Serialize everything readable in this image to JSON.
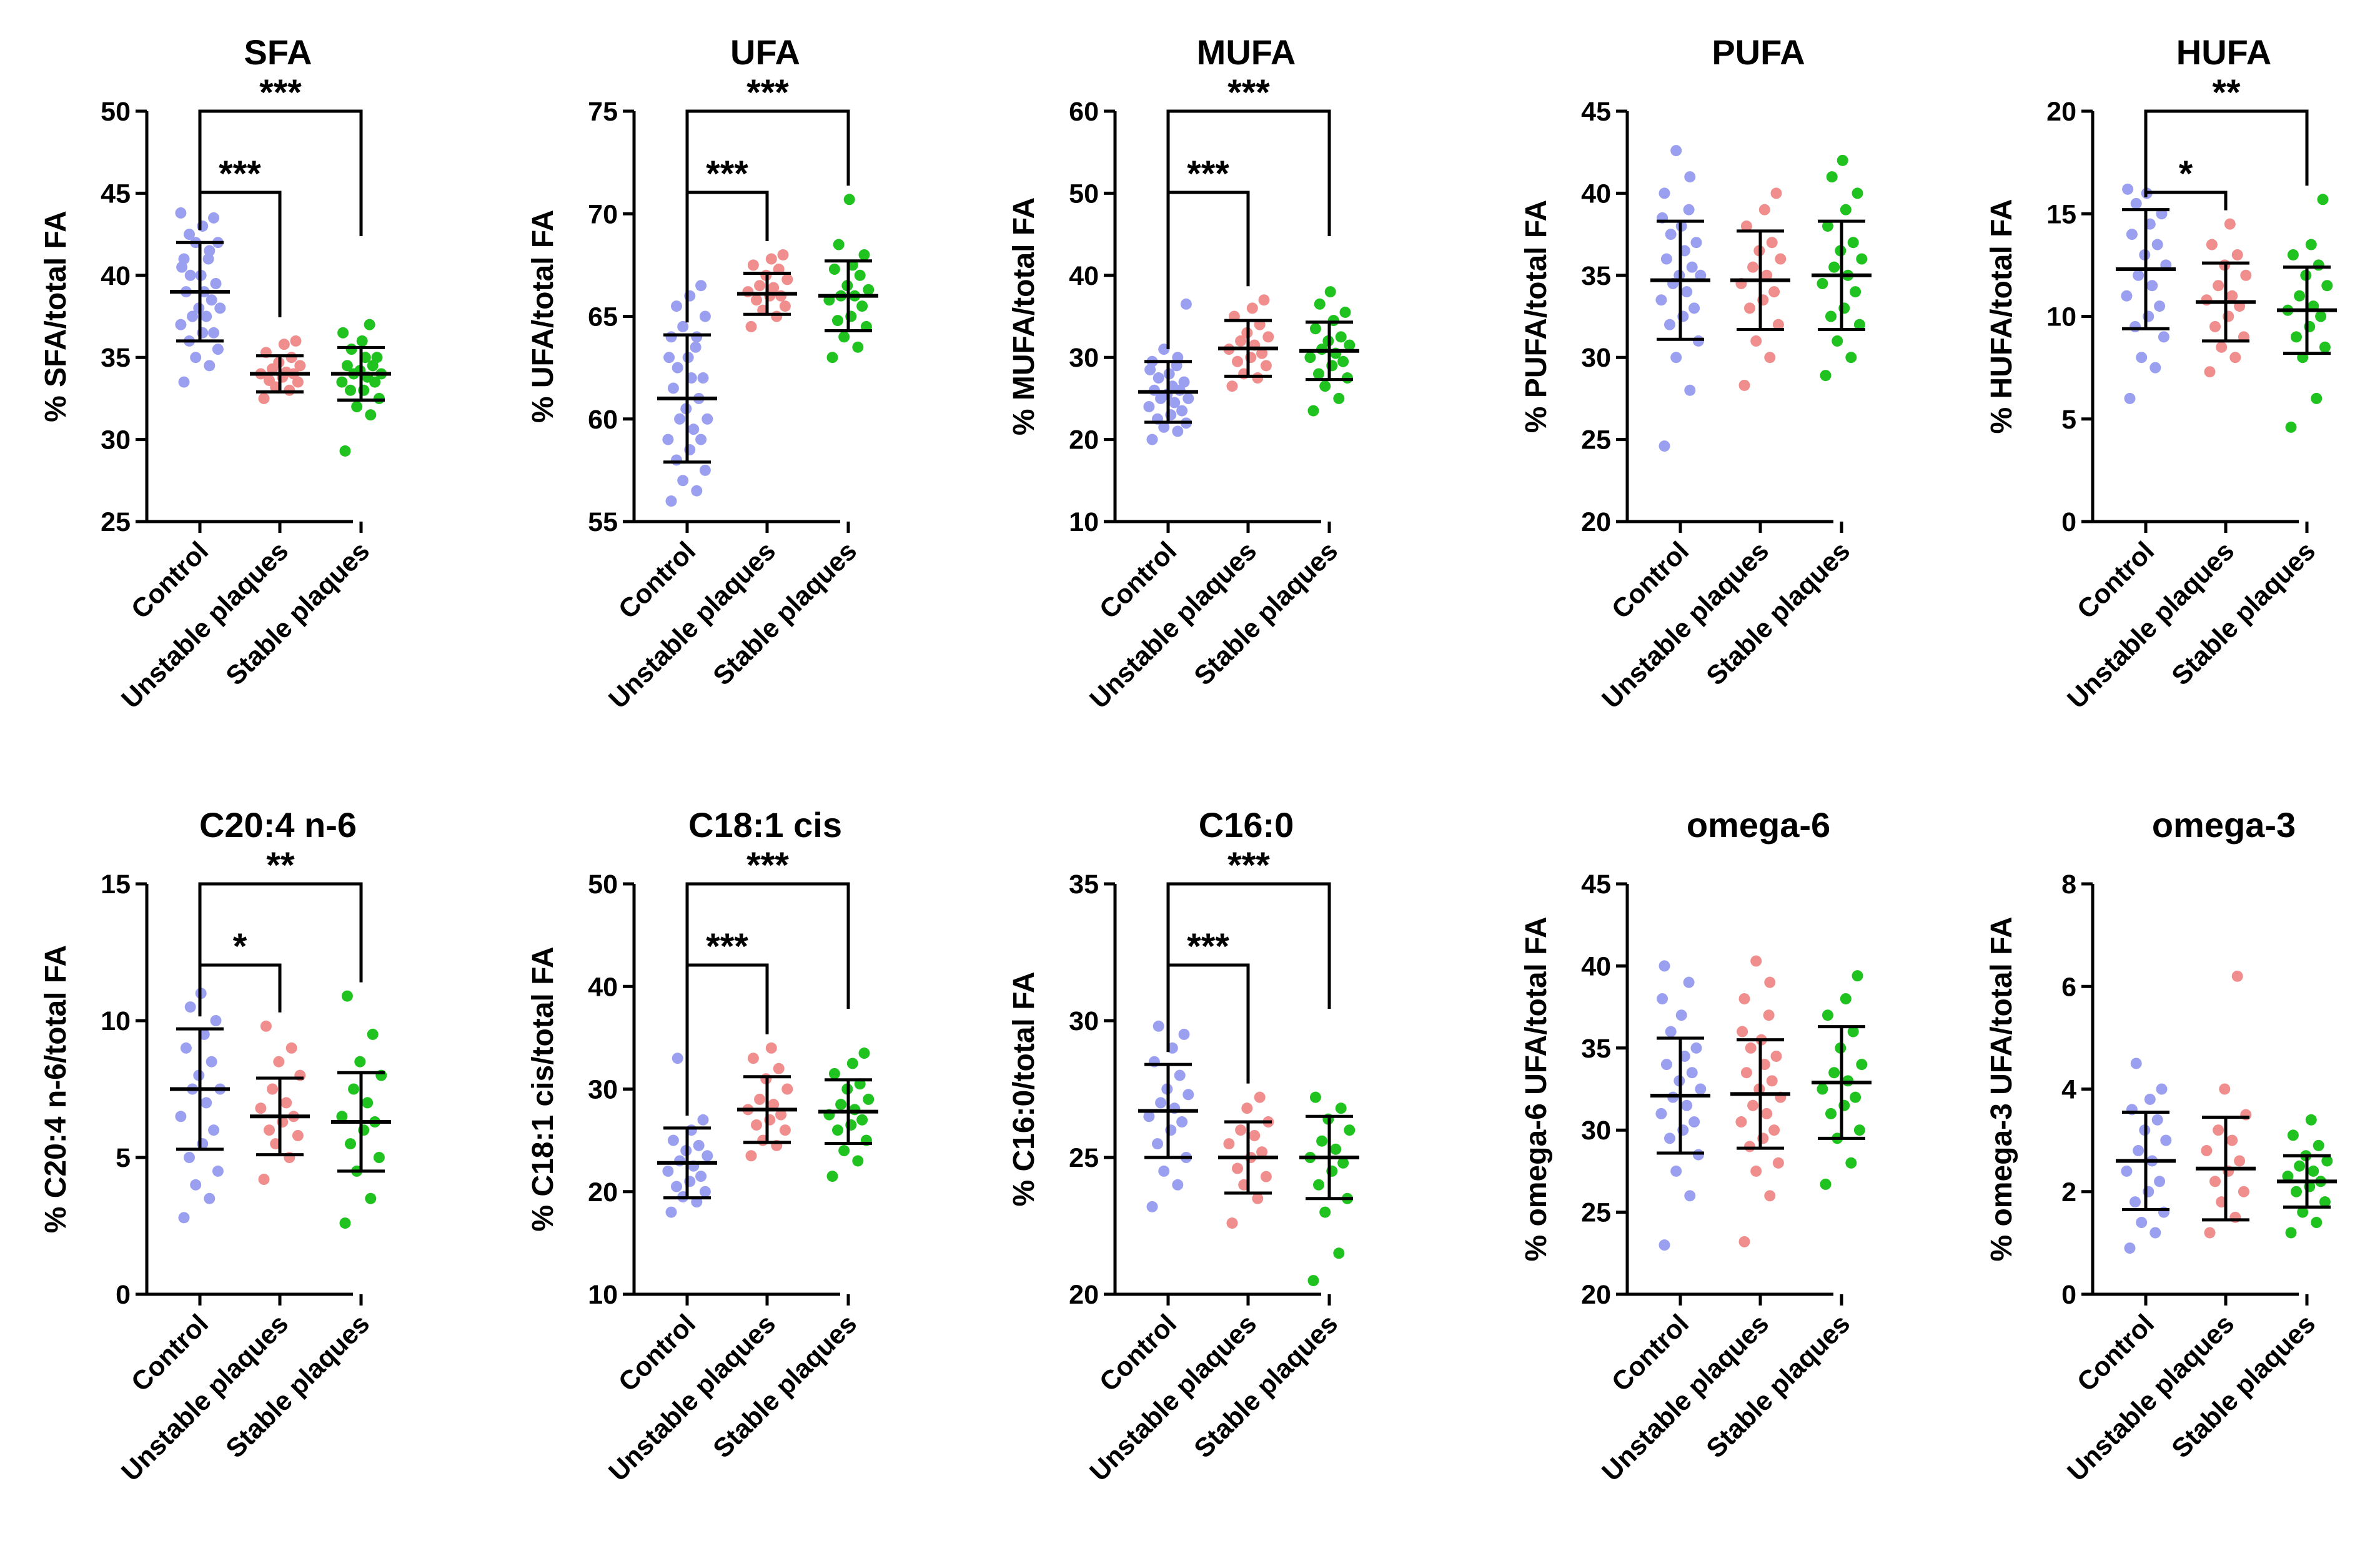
{
  "figure": {
    "description_groups": [
      "Control",
      "Unstable plaques",
      "Stable plaques"
    ]
  },
  "colors": {
    "Control": "#9b9ff0",
    "Unstable plaques": "#f08d8d",
    "Stable plaques": "#1fc21f",
    "axis": "#000000"
  },
  "chart_data": [
    {
      "type": "scatter",
      "title": "SFA",
      "ylabel": "% SFA/total FA",
      "ylim": [
        25,
        50
      ],
      "yticks": [
        25,
        30,
        35,
        40,
        45,
        50
      ],
      "categories": [
        "Control",
        "Unstable plaques",
        "Stable plaques"
      ],
      "series": [
        {
          "name": "Control",
          "mean": 39,
          "sd": 3,
          "values": [
            33.5,
            34.5,
            35.0,
            35.5,
            36.0,
            36.5,
            36.5,
            37.0,
            37.5,
            37.5,
            38.0,
            38.0,
            38.5,
            39.0,
            39.0,
            39.5,
            40.0,
            40.0,
            40.5,
            41.0,
            41.0,
            41.5,
            42.0,
            42.0,
            42.5,
            43.0,
            43.5,
            43.8
          ]
        },
        {
          "name": "Unstable plaques",
          "mean": 34,
          "sd": 1.1,
          "values": [
            32.5,
            33.0,
            33.2,
            33.5,
            33.6,
            33.8,
            34.0,
            34.0,
            34.1,
            34.3,
            34.5,
            34.7,
            35.0,
            35.3,
            35.8,
            36.0
          ]
        },
        {
          "name": "Stable plaques",
          "mean": 34,
          "sd": 1.6,
          "values": [
            29.3,
            31.5,
            32.0,
            32.5,
            33.0,
            33.0,
            33.5,
            33.5,
            33.8,
            34.0,
            34.0,
            34.2,
            34.5,
            34.5,
            35.0,
            35.0,
            35.5,
            36.0,
            36.5,
            37.0
          ]
        }
      ],
      "annotations": [
        {
          "from": "Control",
          "to": "Unstable plaques",
          "label": "***"
        },
        {
          "from": "Control",
          "to": "Stable plaques",
          "label": "***"
        }
      ]
    },
    {
      "type": "scatter",
      "title": "UFA",
      "ylabel": "% UFA/total FA",
      "ylim": [
        55,
        75
      ],
      "yticks": [
        55,
        60,
        65,
        70,
        75
      ],
      "categories": [
        "Control",
        "Unstable plaques",
        "Stable plaques"
      ],
      "series": [
        {
          "name": "Control",
          "mean": 61,
          "sd": 3.1,
          "values": [
            56.0,
            56.5,
            57.0,
            57.5,
            58.0,
            58.5,
            59.0,
            59.0,
            59.5,
            60.0,
            60.0,
            60.5,
            61.0,
            61.5,
            62.0,
            62.0,
            62.5,
            63.0,
            63.0,
            63.5,
            64.0,
            64.0,
            64.5,
            65.0,
            65.5,
            66.0,
            66.5
          ]
        },
        {
          "name": "Unstable plaques",
          "mean": 66.1,
          "sd": 1.0,
          "values": [
            64.5,
            65.0,
            65.3,
            65.5,
            65.8,
            66.0,
            66.0,
            66.2,
            66.4,
            66.5,
            66.8,
            67.0,
            67.3,
            67.5,
            67.8,
            68.0
          ]
        },
        {
          "name": "Stable plaques",
          "mean": 66,
          "sd": 1.7,
          "values": [
            63.0,
            63.5,
            64.0,
            64.5,
            64.8,
            65.0,
            65.5,
            65.8,
            66.0,
            66.0,
            66.3,
            66.5,
            67.0,
            67.3,
            67.5,
            68.0,
            68.5,
            70.7
          ]
        }
      ],
      "annotations": [
        {
          "from": "Control",
          "to": "Unstable plaques",
          "label": "***"
        },
        {
          "from": "Control",
          "to": "Stable plaques",
          "label": "***"
        }
      ]
    },
    {
      "type": "scatter",
      "title": "MUFA",
      "ylabel": "% MUFA/total FA",
      "ylim": [
        10,
        60
      ],
      "yticks": [
        10,
        20,
        30,
        40,
        50,
        60
      ],
      "categories": [
        "Control",
        "Unstable plaques",
        "Stable plaques"
      ],
      "series": [
        {
          "name": "Control",
          "mean": 25.8,
          "sd": 3.7,
          "values": [
            20.0,
            21.0,
            21.5,
            22.0,
            22.5,
            23.0,
            23.5,
            24.0,
            24.5,
            25.0,
            25.0,
            25.5,
            26.0,
            26.0,
            26.5,
            27.0,
            27.5,
            28.0,
            28.5,
            29.0,
            29.5,
            30.0,
            31.0,
            36.5
          ]
        },
        {
          "name": "Unstable plaques",
          "mean": 31.1,
          "sd": 3.4,
          "values": [
            26.5,
            27.5,
            28.0,
            29.0,
            29.5,
            30.0,
            30.5,
            31.0,
            31.5,
            32.0,
            32.5,
            33.0,
            34.0,
            35.0,
            36.0,
            37.0
          ]
        },
        {
          "name": "Stable plaques",
          "mean": 30.8,
          "sd": 3.5,
          "values": [
            23.5,
            25.0,
            26.5,
            27.5,
            28.0,
            29.0,
            29.5,
            30.0,
            30.5,
            31.0,
            31.5,
            32.0,
            32.5,
            33.5,
            34.5,
            35.5,
            36.5,
            38.0
          ]
        }
      ],
      "annotations": [
        {
          "from": "Control",
          "to": "Unstable plaques",
          "label": "***"
        },
        {
          "from": "Control",
          "to": "Stable plaques",
          "label": "***"
        }
      ]
    },
    {
      "type": "scatter",
      "title": "PUFA",
      "ylabel": "% PUFA/total FA",
      "ylim": [
        20,
        45
      ],
      "yticks": [
        20,
        25,
        30,
        35,
        40,
        45
      ],
      "categories": [
        "Control",
        "Unstable plaques",
        "Stable plaques"
      ],
      "series": [
        {
          "name": "Control",
          "mean": 34.7,
          "sd": 3.6,
          "values": [
            24.6,
            28.0,
            30.0,
            31.0,
            32.0,
            32.5,
            33.0,
            33.5,
            34.0,
            34.5,
            35.0,
            35.0,
            35.5,
            36.0,
            36.5,
            37.0,
            37.5,
            38.0,
            38.5,
            39.0,
            40.0,
            41.0,
            42.6
          ]
        },
        {
          "name": "Unstable plaques",
          "mean": 34.7,
          "sd": 3.0,
          "values": [
            28.3,
            30.0,
            31.0,
            32.0,
            33.0,
            33.5,
            34.0,
            34.5,
            35.0,
            35.5,
            36.0,
            36.5,
            37.0,
            38.0,
            39.0,
            40.0
          ]
        },
        {
          "name": "Stable plaques",
          "mean": 35.0,
          "sd": 3.3,
          "values": [
            28.9,
            30.0,
            31.0,
            32.0,
            32.5,
            33.0,
            34.0,
            34.5,
            35.0,
            35.5,
            36.0,
            36.5,
            37.0,
            38.0,
            39.0,
            40.0,
            41.0,
            42.0
          ]
        }
      ],
      "annotations": []
    },
    {
      "type": "scatter",
      "title": "HUFA",
      "ylabel": "% HUFA/total FA",
      "ylim": [
        0,
        20
      ],
      "yticks": [
        0,
        5,
        10,
        15,
        20
      ],
      "categories": [
        "Control",
        "Unstable plaques",
        "Stable plaques"
      ],
      "series": [
        {
          "name": "Control",
          "mean": 12.3,
          "sd": 2.9,
          "values": [
            6.0,
            7.5,
            8.0,
            9.0,
            9.5,
            10.0,
            10.5,
            11.0,
            11.5,
            12.0,
            12.5,
            13.0,
            13.5,
            14.0,
            14.5,
            15.0,
            15.5,
            16.0,
            16.2
          ]
        },
        {
          "name": "Unstable plaques",
          "mean": 10.7,
          "sd": 1.9,
          "values": [
            7.3,
            8.0,
            8.5,
            9.0,
            9.5,
            10.0,
            10.5,
            10.8,
            11.0,
            11.5,
            12.0,
            12.5,
            13.0,
            13.5,
            14.5
          ]
        },
        {
          "name": "Stable plaques",
          "mean": 10.3,
          "sd": 2.1,
          "values": [
            4.6,
            6.0,
            8.0,
            8.5,
            9.0,
            9.5,
            10.0,
            10.3,
            10.5,
            11.0,
            11.5,
            12.0,
            12.5,
            13.0,
            13.5,
            15.7
          ]
        }
      ],
      "annotations": [
        {
          "from": "Control",
          "to": "Unstable plaques",
          "label": "*"
        },
        {
          "from": "Control",
          "to": "Stable plaques",
          "label": "**"
        }
      ]
    },
    {
      "type": "scatter",
      "title": "C20:4 n-6",
      "ylabel": "% C20:4 n-6/total FA",
      "ylim": [
        0,
        15
      ],
      "yticks": [
        0,
        5,
        10,
        15
      ],
      "categories": [
        "Control",
        "Unstable plaques",
        "Stable plaques"
      ],
      "series": [
        {
          "name": "Control",
          "mean": 7.5,
          "sd": 2.2,
          "values": [
            2.8,
            3.5,
            4.0,
            4.5,
            5.0,
            5.5,
            6.0,
            6.5,
            7.0,
            7.5,
            7.5,
            8.0,
            8.5,
            9.0,
            9.5,
            10.0,
            10.5,
            11.0
          ]
        },
        {
          "name": "Unstable plaques",
          "mean": 6.5,
          "sd": 1.4,
          "values": [
            4.2,
            5.0,
            5.5,
            5.8,
            6.0,
            6.3,
            6.5,
            6.8,
            7.0,
            7.5,
            8.0,
            8.5,
            9.0,
            9.8
          ]
        },
        {
          "name": "Stable plaques",
          "mean": 6.3,
          "sd": 1.8,
          "values": [
            2.6,
            3.5,
            4.5,
            5.0,
            5.5,
            6.0,
            6.3,
            6.5,
            7.0,
            7.5,
            8.0,
            8.5,
            9.5,
            10.9
          ]
        }
      ],
      "annotations": [
        {
          "from": "Control",
          "to": "Unstable plaques",
          "label": "*"
        },
        {
          "from": "Control",
          "to": "Stable plaques",
          "label": "**"
        }
      ]
    },
    {
      "type": "scatter",
      "title": "C18:1 cis",
      "ylabel": "% C18:1 cis/total FA",
      "ylim": [
        10,
        50
      ],
      "yticks": [
        10,
        20,
        30,
        40,
        50
      ],
      "categories": [
        "Control",
        "Unstable plaques",
        "Stable plaques"
      ],
      "series": [
        {
          "name": "Control",
          "mean": 22.8,
          "sd": 3.4,
          "values": [
            18.0,
            19.0,
            19.5,
            20.0,
            20.5,
            21.0,
            21.5,
            22.0,
            22.5,
            23.0,
            23.5,
            24.0,
            24.5,
            25.0,
            26.0,
            27.0,
            33.0
          ]
        },
        {
          "name": "Unstable plaques",
          "mean": 28.0,
          "sd": 3.2,
          "values": [
            23.5,
            24.5,
            25.0,
            26.0,
            26.5,
            27.0,
            27.5,
            28.0,
            28.5,
            29.0,
            30.0,
            31.0,
            32.0,
            33.0,
            34.0
          ]
        },
        {
          "name": "Stable plaques",
          "mean": 27.8,
          "sd": 3.1,
          "values": [
            21.5,
            23.0,
            24.0,
            25.0,
            26.0,
            26.5,
            27.0,
            27.5,
            28.0,
            28.5,
            29.0,
            30.0,
            30.5,
            31.5,
            32.5,
            33.5
          ]
        }
      ],
      "annotations": [
        {
          "from": "Control",
          "to": "Unstable plaques",
          "label": "***"
        },
        {
          "from": "Control",
          "to": "Stable plaques",
          "label": "***"
        }
      ]
    },
    {
      "type": "scatter",
      "title": "C16:0",
      "ylabel": "% C16:0/total FA",
      "ylim": [
        20,
        35
      ],
      "yticks": [
        20,
        25,
        30,
        35
      ],
      "categories": [
        "Control",
        "Unstable plaques",
        "Stable plaques"
      ],
      "series": [
        {
          "name": "Control",
          "mean": 26.7,
          "sd": 1.7,
          "values": [
            23.2,
            24.0,
            24.5,
            25.0,
            25.5,
            26.0,
            26.3,
            26.5,
            26.8,
            27.0,
            27.3,
            27.5,
            28.0,
            28.5,
            29.0,
            29.5,
            29.8
          ]
        },
        {
          "name": "Unstable plaques",
          "mean": 25.0,
          "sd": 1.3,
          "values": [
            22.6,
            23.5,
            24.0,
            24.3,
            24.6,
            25.0,
            25.2,
            25.5,
            25.8,
            26.0,
            26.3,
            26.8,
            27.2
          ]
        },
        {
          "name": "Stable plaques",
          "mean": 25.0,
          "sd": 1.5,
          "values": [
            20.5,
            21.5,
            23.0,
            23.5,
            24.0,
            24.5,
            24.8,
            25.0,
            25.3,
            25.6,
            26.0,
            26.4,
            26.8,
            27.2
          ]
        }
      ],
      "annotations": [
        {
          "from": "Control",
          "to": "Unstable plaques",
          "label": "***"
        },
        {
          "from": "Control",
          "to": "Stable plaques",
          "label": "***"
        }
      ]
    },
    {
      "type": "scatter",
      "title": "omega-6",
      "ylabel": "% omega-6 UFA/total FA",
      "ylim": [
        20,
        45
      ],
      "yticks": [
        20,
        25,
        30,
        35,
        40,
        45
      ],
      "categories": [
        "Control",
        "Unstable plaques",
        "Stable plaques"
      ],
      "series": [
        {
          "name": "Control",
          "mean": 32.1,
          "sd": 3.5,
          "values": [
            23.0,
            26.0,
            27.5,
            28.5,
            29.5,
            30.0,
            30.5,
            31.0,
            31.5,
            32.0,
            32.5,
            33.0,
            33.5,
            34.0,
            34.5,
            35.0,
            36.0,
            37.0,
            38.0,
            39.0,
            40.0
          ]
        },
        {
          "name": "Unstable plaques",
          "mean": 32.2,
          "sd": 3.3,
          "values": [
            23.2,
            26.0,
            27.5,
            28.0,
            29.0,
            29.5,
            30.0,
            30.5,
            31.0,
            31.5,
            32.0,
            32.5,
            33.0,
            33.5,
            34.0,
            34.5,
            35.0,
            35.5,
            36.0,
            37.0,
            38.0,
            39.0,
            40.3
          ]
        },
        {
          "name": "Stable plaques",
          "mean": 32.9,
          "sd": 3.4,
          "values": [
            26.7,
            28.0,
            29.5,
            30.0,
            31.0,
            31.5,
            32.0,
            32.5,
            33.0,
            33.5,
            34.0,
            35.0,
            36.0,
            37.0,
            38.0,
            39.4
          ]
        }
      ],
      "annotations": []
    },
    {
      "type": "scatter",
      "title": "omega-3",
      "ylabel": "% omega-3 UFA/total FA",
      "ylim": [
        0,
        8
      ],
      "yticks": [
        0,
        2,
        4,
        6,
        8
      ],
      "categories": [
        "Control",
        "Unstable plaques",
        "Stable plaques"
      ],
      "series": [
        {
          "name": "Control",
          "mean": 2.6,
          "sd": 0.95,
          "values": [
            0.9,
            1.2,
            1.4,
            1.6,
            1.8,
            2.0,
            2.2,
            2.4,
            2.6,
            2.8,
            3.0,
            3.2,
            3.4,
            3.6,
            3.8,
            4.0,
            4.5
          ]
        },
        {
          "name": "Unstable plaques",
          "mean": 2.45,
          "sd": 1.0,
          "values": [
            1.2,
            1.5,
            1.8,
            2.0,
            2.2,
            2.4,
            2.6,
            2.8,
            3.0,
            3.2,
            3.5,
            4.0,
            6.2
          ]
        },
        {
          "name": "Stable plaques",
          "mean": 2.2,
          "sd": 0.5,
          "values": [
            1.2,
            1.4,
            1.6,
            1.8,
            2.0,
            2.1,
            2.2,
            2.3,
            2.4,
            2.5,
            2.6,
            2.7,
            2.9,
            3.1,
            3.4
          ]
        }
      ],
      "annotations": []
    }
  ]
}
